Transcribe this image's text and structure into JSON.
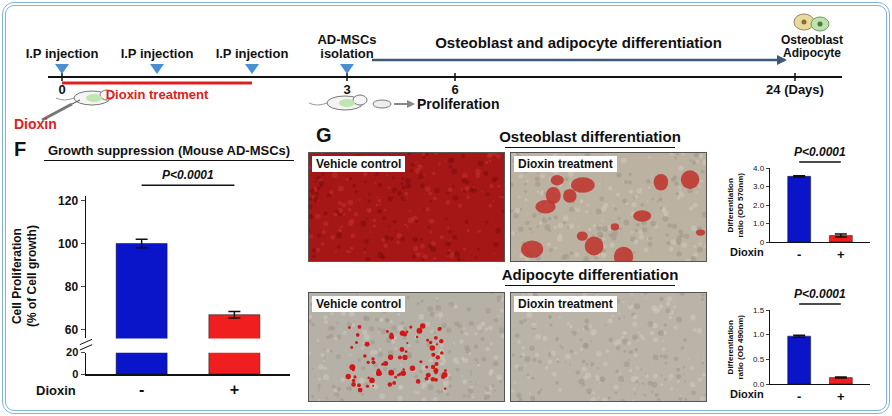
{
  "timeline": {
    "markers": [
      {
        "day": 0,
        "label": "I.P injection"
      },
      {
        "day": 1,
        "label": "I.P injection"
      },
      {
        "day": 2,
        "label": "I.P injection"
      },
      {
        "day": 3,
        "label": "AD-MSCs isolation"
      }
    ],
    "day_ticks": [
      {
        "value": 0,
        "label": "0"
      },
      {
        "value": 3,
        "label": "3"
      },
      {
        "value": 6,
        "label": "6"
      },
      {
        "value": 24,
        "label": "24 (Days)"
      }
    ],
    "treatment": {
      "label": "Dioxin treatment",
      "start": 0,
      "end": 2
    },
    "phase": {
      "label": "Osteoblast and adipocyte differentiation",
      "start": 3,
      "end": 24
    },
    "agent": "Dioxin",
    "culture": "Proliferation",
    "outcome": [
      "Osteoblast",
      "Adipocyte"
    ]
  },
  "image_panels": {
    "panel": "G",
    "groups": [
      {
        "title": "Osteoblast differentiation",
        "images": [
          "Vehicle control",
          "Dioxin treatment"
        ]
      },
      {
        "title": "Adipocyte differentiation",
        "images": [
          "Vehicle control",
          "Dioxin treatment"
        ]
      }
    ]
  },
  "chart_data": [
    {
      "type": "bar",
      "panel": "F",
      "title": "Growth suppression (Mouse AD-MSCs)",
      "ylabel": [
        "Cell Proliferation",
        "(% of Cell growth)"
      ],
      "xlabel": "Dioxin",
      "categories": [
        "-",
        "+"
      ],
      "values": [
        100,
        67
      ],
      "errors": [
        2,
        1.5
      ],
      "colors": [
        "#0a14c8",
        "#f01e1e"
      ],
      "ylim": [
        56,
        122
      ],
      "yticks": [
        60,
        80,
        100,
        120
      ],
      "ylim_lower": [
        0,
        20
      ],
      "yticks_lower": [
        0,
        20
      ],
      "annotation": "P<0.0001",
      "grid": false
    },
    {
      "type": "bar",
      "ylabel": [
        "Differentiation",
        "ratio (OD 570nm)"
      ],
      "xlabel": "Dioxin",
      "categories": [
        "-",
        "+"
      ],
      "values": [
        3.55,
        0.35
      ],
      "errors": [
        0.03,
        0.08
      ],
      "colors": [
        "#0a14c8",
        "#f01e1e"
      ],
      "ylim": [
        0,
        4
      ],
      "yticks": [
        0,
        {
          "value": 1,
          "label": "1.0"
        },
        {
          "value": 2,
          "label": "2.0"
        },
        {
          "value": 3,
          "label": "3.0"
        },
        {
          "value": 4,
          "label": "4.0"
        }
      ],
      "annotation": "P<0.0001",
      "grid": false
    },
    {
      "type": "bar",
      "ylabel": [
        "Differentiation",
        "ratio (OD 490nm)"
      ],
      "xlabel": "Dioxin",
      "categories": [
        "-",
        "+"
      ],
      "values": [
        0.97,
        0.13
      ],
      "errors": [
        0.02,
        0.01
      ],
      "colors": [
        "#0a14c8",
        "#f01e1e"
      ],
      "ylim": [
        0,
        1.5
      ],
      "yticks": [
        {
          "value": 0,
          "label": "0.0"
        },
        0.5,
        {
          "value": 1,
          "label": "1.0"
        },
        1.5
      ],
      "annotation": "P<0.0001",
      "grid": false
    }
  ]
}
